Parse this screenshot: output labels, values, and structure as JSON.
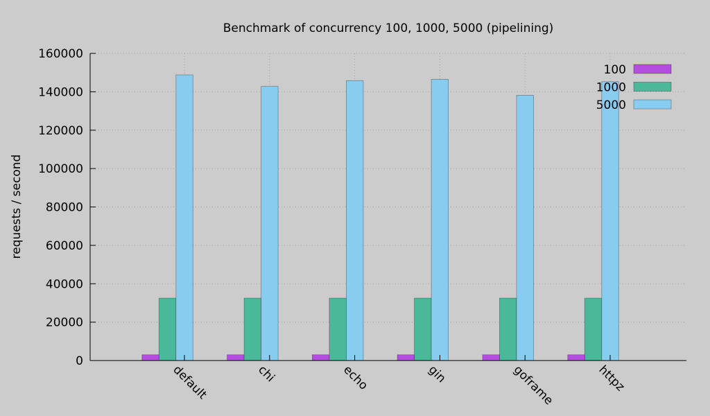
{
  "chart_data": {
    "type": "bar",
    "title": "Benchmark of concurrency 100, 1000, 5000 (pipelining)",
    "xlabel": "",
    "ylabel": "requests / second",
    "ylim": [
      0,
      160000
    ],
    "yticks": [
      0,
      20000,
      40000,
      60000,
      80000,
      100000,
      120000,
      140000,
      160000
    ],
    "grid": true,
    "legend_position": "top-right",
    "categories": [
      "default",
      "chi",
      "echo",
      "gin",
      "goframe",
      "httpz"
    ],
    "series": [
      {
        "name": "100",
        "color": "#b44ee0",
        "values": [
          3000,
          3000,
          3000,
          3000,
          3000,
          3000
        ]
      },
      {
        "name": "1000",
        "color": "#4ab99a",
        "values": [
          32500,
          32500,
          32500,
          32500,
          32500,
          32500
        ]
      },
      {
        "name": "5000",
        "color": "#88ccf0",
        "values": [
          148800,
          142800,
          145800,
          146500,
          138200,
          145300
        ]
      }
    ]
  }
}
